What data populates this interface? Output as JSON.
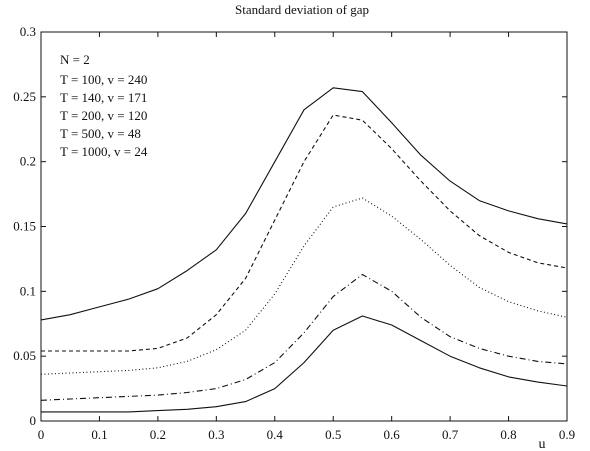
{
  "chart_data": {
    "type": "line",
    "title": "Standard deviation of gap",
    "xlabel": "u",
    "ylabel": "",
    "xlim": [
      0,
      0.9
    ],
    "ylim": [
      0,
      0.3
    ],
    "xticks": [
      0,
      0.1,
      0.2,
      0.3,
      0.4,
      0.5,
      0.6,
      0.7,
      0.8,
      0.9
    ],
    "xtick_labels": [
      "0",
      "0.1",
      "0.2",
      "0.3",
      "0.4",
      "0.5",
      "0.6",
      "0.7",
      "0.8",
      "0.9"
    ],
    "yticks": [
      0,
      0.05,
      0.1,
      0.15,
      0.2,
      0.25,
      0.3
    ],
    "ytick_labels": [
      "0",
      "0.05",
      "0.1",
      "0.15",
      "0.2",
      "0.25",
      "0.3"
    ],
    "grid": false,
    "legend_placement": "top-left",
    "legend_header": "N = 2",
    "legend_entries": [
      "T = 100,   v = 240",
      "T = 140,   v = 171",
      "T = 200,   v = 120",
      "T = 500,   v = 48",
      "T = 1000, v = 24"
    ],
    "x": [
      0,
      0.05,
      0.1,
      0.15,
      0.2,
      0.25,
      0.3,
      0.35,
      0.4,
      0.45,
      0.5,
      0.55,
      0.6,
      0.65,
      0.7,
      0.75,
      0.8,
      0.85,
      0.9
    ],
    "series": [
      {
        "style": "solid",
        "values": [
          0.078,
          0.082,
          0.088,
          0.094,
          0.102,
          0.116,
          0.132,
          0.16,
          0.2,
          0.24,
          0.257,
          0.254,
          0.23,
          0.205,
          0.185,
          0.17,
          0.162,
          0.156,
          0.152
        ]
      },
      {
        "style": "dashed",
        "values": [
          0.054,
          0.054,
          0.054,
          0.054,
          0.056,
          0.064,
          0.082,
          0.11,
          0.155,
          0.2,
          0.236,
          0.232,
          0.21,
          0.185,
          0.162,
          0.143,
          0.13,
          0.122,
          0.118
        ]
      },
      {
        "style": "dotted",
        "values": [
          0.036,
          0.037,
          0.038,
          0.039,
          0.041,
          0.046,
          0.055,
          0.07,
          0.098,
          0.135,
          0.165,
          0.172,
          0.158,
          0.14,
          0.12,
          0.103,
          0.092,
          0.085,
          0.08
        ]
      },
      {
        "style": "dashdot",
        "values": [
          0.016,
          0.017,
          0.018,
          0.019,
          0.02,
          0.022,
          0.025,
          0.032,
          0.045,
          0.068,
          0.096,
          0.113,
          0.1,
          0.08,
          0.065,
          0.056,
          0.05,
          0.046,
          0.044
        ]
      },
      {
        "style": "solid",
        "values": [
          0.007,
          0.007,
          0.007,
          0.007,
          0.008,
          0.009,
          0.011,
          0.015,
          0.025,
          0.045,
          0.07,
          0.081,
          0.074,
          0.062,
          0.05,
          0.041,
          0.034,
          0.03,
          0.027
        ]
      }
    ]
  }
}
